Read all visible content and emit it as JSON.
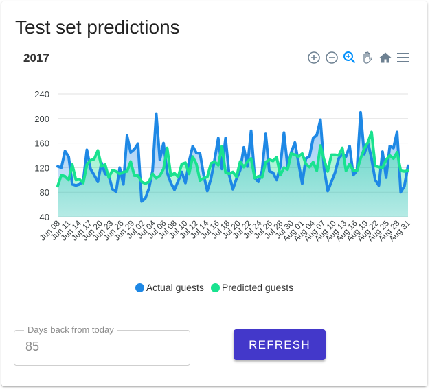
{
  "card": {
    "title": "Test set predictions"
  },
  "toolbar": {
    "icons": [
      "zoom-in-icon",
      "zoom-out-icon",
      "zoom-selection-icon",
      "pan-hand-icon",
      "home-reset-icon",
      "menu-icon"
    ]
  },
  "colors": {
    "actual": "#1e88e5",
    "predicted": "#19e28f",
    "button": "#4338ca",
    "toolbar_icon": "#6e8192",
    "toolbar_active": "#008ffb"
  },
  "form": {
    "days_label": "Days back from today",
    "days_value": "85",
    "refresh_label": "REFRESH"
  },
  "chart_data": {
    "type": "area",
    "title": "2017",
    "ylim": [
      40,
      240
    ],
    "yticks": [
      "40",
      "80",
      "120",
      "160",
      "200",
      "240"
    ],
    "grid": true,
    "legend_position": "bottom",
    "x_tick_labels": [
      "Jun 08",
      "Jun 11",
      "Jun 14",
      "Jun 17",
      "Jun 20",
      "Jun 23",
      "Jun 26",
      "Jun 29",
      "Jul 02",
      "Jul 04",
      "Jul 06",
      "Jul 08",
      "Jul 10",
      "Jul 12",
      "Jul 14",
      "Jul 16",
      "Jul 18",
      "Jul 20",
      "Jul 22",
      "Jul 24",
      "Jul 26",
      "Jul 28",
      "Jul 30",
      "Aug 01",
      "Aug 04",
      "Aug 07",
      "Aug 10",
      "Aug 13",
      "Aug 16",
      "Aug 19",
      "Aug 22",
      "Aug 25",
      "Aug 28",
      "Aug 31"
    ],
    "series": [
      {
        "name": "Actual guests",
        "values": [
          122,
          120,
          147,
          138,
          93,
          91,
          93,
          98,
          149,
          118,
          108,
          97,
          128,
          110,
          107,
          85,
          81,
          120,
          93,
          172,
          145,
          150,
          159,
          65,
          70,
          86,
          115,
          208,
          133,
          160,
          112,
          95,
          84,
          98,
          113,
          95,
          130,
          155,
          144,
          143,
          108,
          82,
          102,
          133,
          168,
          118,
          168,
          108,
          85,
          102,
          116,
          153,
          122,
          180,
          103,
          97,
          115,
          175,
          114,
          112,
          100,
          122,
          177,
          122,
          145,
          161,
          128,
          94,
          135,
          138,
          168,
          173,
          198,
          118,
          82,
          97,
          112,
          135,
          142,
          138,
          155,
          108,
          115,
          210,
          142,
          161,
          135,
          100,
          91,
          146,
          104,
          155,
          152,
          178,
          80,
          90,
          123
        ]
      },
      {
        "name": "Predicted guests",
        "values": [
          90,
          108,
          106,
          100,
          125,
          100,
          101,
          95,
          125,
          132,
          134,
          148,
          122,
          125,
          104,
          116,
          114,
          110,
          113,
          114,
          130,
          107,
          107,
          97,
          94,
          97,
          110,
          103,
          107,
          118,
          152,
          107,
          111,
          105,
          126,
          128,
          110,
          138,
          126,
          99,
          103,
          105,
          127,
          130,
          124,
          155,
          112,
          110,
          113,
          105,
          130,
          121,
          130,
          135,
          103,
          106,
          104,
          129,
          133,
          131,
          137,
          108,
          120,
          117,
          143,
          141,
          138,
          143,
          126,
          121,
          129,
          115,
          156,
          133,
          114,
          141,
          141,
          140,
          152,
          115,
          126,
          115,
          115,
          135,
          151,
          161,
          178,
          123,
          121,
          120,
          133,
          140,
          135,
          145,
          115,
          114,
          115
        ]
      }
    ]
  }
}
